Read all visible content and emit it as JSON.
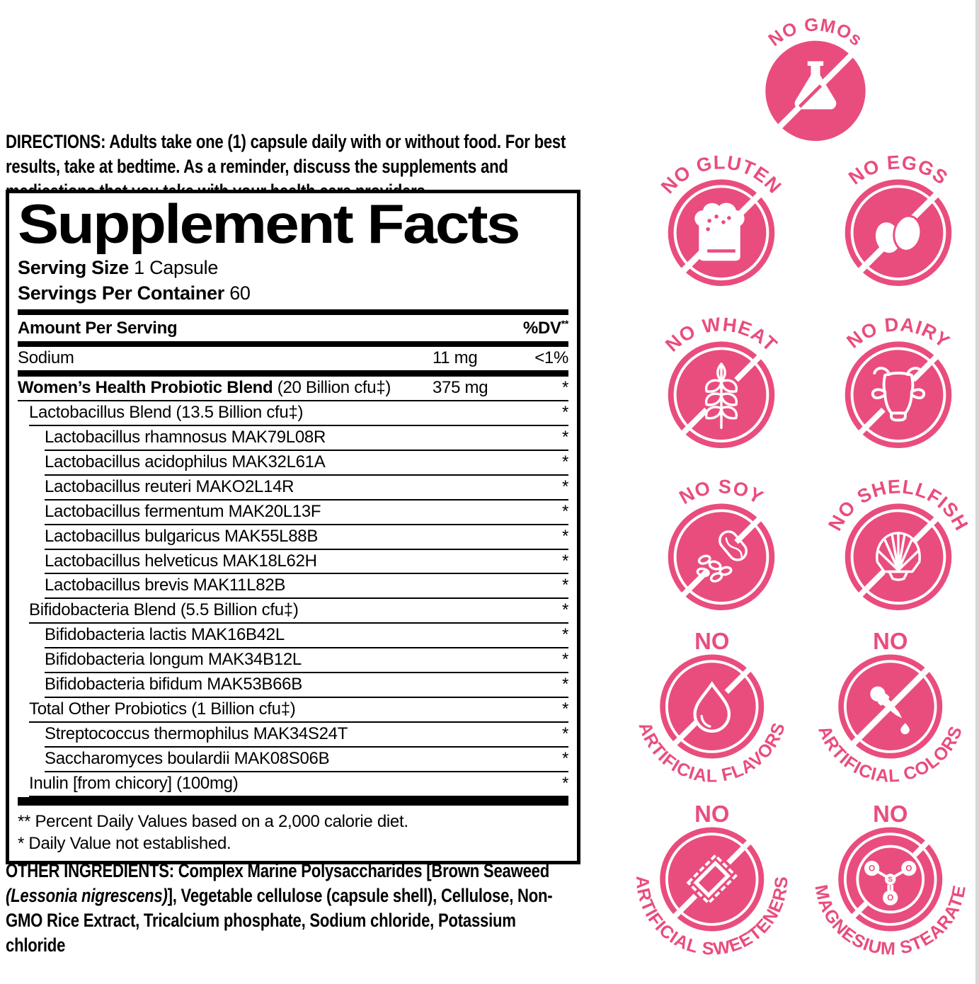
{
  "colors": {
    "badge_pink": "#E94D7D",
    "ink": "#000000",
    "edge_strip": "#D8D8D8"
  },
  "directions": {
    "label": "DIRECTIONS:",
    "text": "Adults take one (1) capsule daily with or without food. For best results, take at bedtime. As a reminder, discuss the supplements and medications that you take with your health care providers."
  },
  "supplement_facts": {
    "title": "Supplement Facts",
    "serving_size_label": "Serving Size",
    "serving_size_value": "1 Capsule",
    "servings_label": "Servings Per Container",
    "servings_value": "60",
    "header": {
      "amount": "Amount Per Serving",
      "dv": "%DV",
      "dv_sup": "**"
    },
    "rows": [
      {
        "name": "Sodium",
        "amount": "11 mg",
        "dv": "<1%",
        "indent": 0,
        "sep": "thick"
      },
      {
        "name": "Women’s Health Probiotic Blend",
        "suffix": " (20 Billion cfu‡)",
        "amount": "375 mg",
        "dv": "*",
        "indent": 0,
        "bold": true
      },
      {
        "name": "Lactobacillus Blend (13.5 Billion cfu‡)",
        "dv": "*",
        "indent": 1
      },
      {
        "name": "Lactobacillus rhamnosus MAK79L08R",
        "dv": "*",
        "indent": 2
      },
      {
        "name": "Lactobacillus acidophilus MAK32L61A",
        "dv": "*",
        "indent": 2
      },
      {
        "name": "Lactobacillus reuteri MAKO2L14R",
        "dv": "*",
        "indent": 2
      },
      {
        "name": "Lactobacillus fermentum MAK20L13F",
        "dv": "*",
        "indent": 2
      },
      {
        "name": "Lactobacillus bulgaricus MAK55L88B",
        "dv": "*",
        "indent": 2
      },
      {
        "name": "Lactobacillus helveticus MAK18L62H",
        "dv": "*",
        "indent": 2
      },
      {
        "name": "Lactobacillus brevis MAK11L82B",
        "dv": "*",
        "indent": 2
      },
      {
        "name": "Bifidobacteria Blend (5.5 Billion cfu‡)",
        "dv": "*",
        "indent": 1
      },
      {
        "name": "Bifidobacteria lactis MAK16B42L",
        "dv": "*",
        "indent": 2
      },
      {
        "name": "Bifidobacteria longum MAK34B12L",
        "dv": "*",
        "indent": 2
      },
      {
        "name": "Bifidobacteria bifidum MAK53B66B",
        "dv": "*",
        "indent": 2
      },
      {
        "name": "Total Other Probiotics (1 Billion cfu‡)",
        "dv": "*",
        "indent": 1
      },
      {
        "name": "Streptococcus thermophilus MAK34S24T",
        "dv": "*",
        "indent": 2
      },
      {
        "name": "Saccharomyces boulardii MAK08S06B",
        "dv": "*",
        "indent": 2
      },
      {
        "name": "Inulin [from chicory] (100mg)",
        "dv": "*",
        "indent": 1
      }
    ],
    "footnote1": "** Percent Daily Values based on a 2,000 calorie diet.",
    "footnote2": "* Daily Value not established."
  },
  "other_ingredients": {
    "label": "OTHER INGREDIENTS:",
    "text1": " Complex Marine Polysaccharides [Brown Seaweed ",
    "italic": "(Lessonia nigrescens)",
    "text2": "], Vegetable cellulose (capsule shell), Cellulose, Non-GMO Rice Extract, Tricalcium phosphate, Sodium chloride, Potassium chloride"
  },
  "badges": [
    {
      "id": "no-gmos",
      "arc": "top",
      "arc_text": "NO GMOs",
      "icon": "flask-icon"
    },
    {
      "id": "no-gluten",
      "arc": "top",
      "arc_text": "NO GLUTEN",
      "icon": "bread-icon"
    },
    {
      "id": "no-eggs",
      "arc": "top",
      "arc_text": "NO EGGS",
      "icon": "eggs-icon"
    },
    {
      "id": "no-wheat",
      "arc": "top",
      "arc_text": "NO WHEAT",
      "icon": "wheat-icon"
    },
    {
      "id": "no-dairy",
      "arc": "top",
      "arc_text": "NO DAIRY",
      "icon": "cow-icon"
    },
    {
      "id": "no-soy",
      "arc": "top",
      "arc_text": "NO SOY",
      "icon": "soybean-icon"
    },
    {
      "id": "no-shellfish",
      "arc": "top",
      "arc_text": "NO SHELLFISH",
      "icon": "shell-icon"
    },
    {
      "id": "no-artificial-flavors",
      "arc": "bottom",
      "top_text": "NO",
      "arc_text": "ARTIFICIAL FLAVORS",
      "icon": "droplet-icon"
    },
    {
      "id": "no-artificial-colors",
      "arc": "bottom",
      "top_text": "NO",
      "arc_text": "ARTIFICIAL COLORS",
      "icon": "dropper-icon"
    },
    {
      "id": "no-artificial-sweeteners",
      "arc": "bottom",
      "top_text": "NO",
      "arc_text": "ARTIFICIAL SWEETENERS",
      "icon": "sweetener-packet-icon"
    },
    {
      "id": "no-magnesium-stearate",
      "arc": "bottom",
      "top_text": "NO",
      "arc_text": "MAGNESIUM STEARATE",
      "icon": "molecule-icon",
      "icon_labels": {
        "center": "S",
        "outer": "O"
      }
    }
  ]
}
